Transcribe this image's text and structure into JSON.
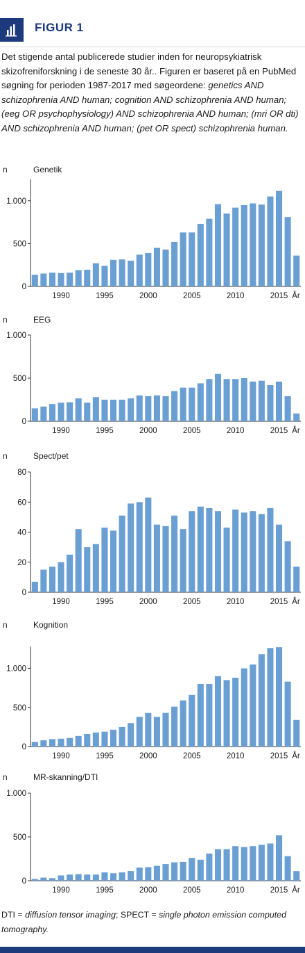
{
  "figure_label": "FIGUR 1",
  "caption": {
    "plain": "Det stigende antal publicerede studier inden for neuropsykiatrisk skizofreniforskning i de seneste 30 år.. Figuren er baseret på en PubMed søgning for perioden 1987-2017 med søgeordene: ",
    "terms": "genetics AND schizophrenia AND human; cognition AND schizophrenia AND human; (eeg OR psychophysiology) AND schizophrenia AND human; (mri OR dti) AND schizophrenia AND human; (pet OR spect) schizophrenia human.",
    "terms_text": "genetics AND schizophrenia AND human; cognition AND schizophrenia AND human; (eeg OR psychophysiology) AND schizophrenia AND human; (mri OR dti) AND schizophrenia AND human; (pet OR spect) schizophrenia human."
  },
  "footnote": {
    "abbr1": "DTI = ",
    "def1": "diffusion tensor imaging",
    "abbr2": "; SPECT = ",
    "def2": "single photon emission computed tomography."
  },
  "colors": {
    "bar": "#6a9fd4",
    "accent": "#1d3a7c"
  },
  "icon": "bar-chart-icon",
  "chart_data": [
    {
      "type": "bar",
      "title": "Genetik",
      "ylabel": "n",
      "xlabel": "År",
      "ylim": [
        0,
        1250
      ],
      "yticks": [
        0,
        500,
        1000
      ],
      "ytick_labels": [
        "0",
        "500",
        "1.000"
      ],
      "x": [
        1987,
        1988,
        1989,
        1990,
        1991,
        1992,
        1993,
        1994,
        1995,
        1996,
        1997,
        1998,
        1999,
        2000,
        2001,
        2002,
        2003,
        2004,
        2005,
        2006,
        2007,
        2008,
        2009,
        2010,
        2011,
        2012,
        2013,
        2014,
        2015,
        2016,
        2017
      ],
      "values": [
        135,
        150,
        160,
        155,
        160,
        190,
        195,
        270,
        240,
        310,
        315,
        300,
        370,
        390,
        450,
        430,
        520,
        630,
        630,
        730,
        790,
        960,
        850,
        920,
        950,
        970,
        955,
        1050,
        1115,
        810,
        360
      ],
      "xtick_labels": [
        "1990",
        "1995",
        "2000",
        "2005",
        "2010",
        "2015"
      ]
    },
    {
      "type": "bar",
      "title": "EEG",
      "ylabel": "n",
      "xlabel": "År",
      "ylim": [
        0,
        1000
      ],
      "yticks": [
        0,
        500,
        1000
      ],
      "ytick_labels": [
        "0",
        "500",
        "1.000"
      ],
      "x": [
        1987,
        1988,
        1989,
        1990,
        1991,
        1992,
        1993,
        1994,
        1995,
        1996,
        1997,
        1998,
        1999,
        2000,
        2001,
        2002,
        2003,
        2004,
        2005,
        2006,
        2007,
        2008,
        2009,
        2010,
        2011,
        2012,
        2013,
        2014,
        2015,
        2016,
        2017
      ],
      "values": [
        150,
        170,
        200,
        215,
        220,
        265,
        215,
        280,
        250,
        250,
        250,
        265,
        300,
        290,
        300,
        290,
        350,
        390,
        390,
        440,
        490,
        550,
        490,
        490,
        500,
        460,
        470,
        420,
        460,
        290,
        90
      ],
      "xtick_labels": [
        "1990",
        "1995",
        "2000",
        "2005",
        "2010",
        "2015"
      ]
    },
    {
      "type": "bar",
      "title": "Spect/pet",
      "ylabel": "n",
      "xlabel": "År",
      "ylim": [
        0,
        80
      ],
      "yticks": [
        0,
        20,
        40,
        60,
        80
      ],
      "ytick_labels": [
        "0",
        "20",
        "40",
        "60",
        "80"
      ],
      "x": [
        1987,
        1988,
        1989,
        1990,
        1991,
        1992,
        1993,
        1994,
        1995,
        1996,
        1997,
        1998,
        1999,
        2000,
        2001,
        2002,
        2003,
        2004,
        2005,
        2006,
        2007,
        2008,
        2009,
        2010,
        2011,
        2012,
        2013,
        2014,
        2015,
        2016,
        2017
      ],
      "values": [
        7,
        15,
        17,
        20,
        25,
        42,
        30,
        32,
        43,
        41,
        51,
        59,
        60,
        63,
        45,
        44,
        51,
        42,
        54,
        57,
        56,
        54,
        43,
        55,
        53,
        54,
        52,
        56,
        45,
        34,
        17
      ],
      "xtick_labels": [
        "1990",
        "1995",
        "2000",
        "2005",
        "2010",
        "2015"
      ]
    },
    {
      "type": "bar",
      "title": "Kognition",
      "ylabel": "n",
      "xlabel": "År",
      "ylim": [
        0,
        1280
      ],
      "yticks": [
        0,
        500,
        1000
      ],
      "ytick_labels": [
        "0",
        "500",
        "1.000"
      ],
      "x": [
        1987,
        1988,
        1989,
        1990,
        1991,
        1992,
        1993,
        1994,
        1995,
        1996,
        1997,
        1998,
        1999,
        2000,
        2001,
        2002,
        2003,
        2004,
        2005,
        2006,
        2007,
        2008,
        2009,
        2010,
        2011,
        2012,
        2013,
        2014,
        2015,
        2016,
        2017
      ],
      "values": [
        60,
        80,
        95,
        100,
        110,
        135,
        160,
        180,
        190,
        215,
        250,
        300,
        380,
        430,
        380,
        430,
        510,
        590,
        660,
        800,
        800,
        900,
        850,
        880,
        1000,
        1050,
        1180,
        1260,
        1270,
        830,
        340
      ],
      "xtick_labels": [
        "1990",
        "1995",
        "2000",
        "2005",
        "2010",
        "2015"
      ]
    },
    {
      "type": "bar",
      "title": "MR-skanning/DTI",
      "ylabel": "n",
      "xlabel": "År",
      "ylim": [
        0,
        1000
      ],
      "yticks": [
        0,
        500,
        1000
      ],
      "ytick_labels": [
        "0",
        "500",
        "1.000"
      ],
      "x": [
        1987,
        1988,
        1989,
        1990,
        1991,
        1992,
        1993,
        1994,
        1995,
        1996,
        1997,
        1998,
        1999,
        2000,
        2001,
        2002,
        2003,
        2004,
        2005,
        2006,
        2007,
        2008,
        2009,
        2010,
        2011,
        2012,
        2013,
        2014,
        2015,
        2016,
        2017
      ],
      "values": [
        20,
        35,
        30,
        60,
        70,
        75,
        70,
        70,
        95,
        85,
        95,
        110,
        150,
        155,
        170,
        190,
        210,
        215,
        260,
        240,
        310,
        360,
        360,
        395,
        385,
        395,
        410,
        425,
        520,
        280,
        110
      ],
      "xtick_labels": [
        "1990",
        "1995",
        "2000",
        "2005",
        "2010",
        "2015"
      ]
    }
  ]
}
